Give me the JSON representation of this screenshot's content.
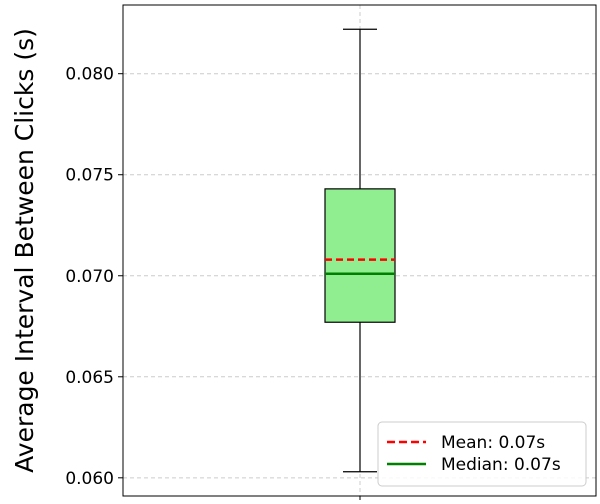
{
  "chart_data": {
    "type": "box",
    "ylabel": "Average Interval Between Clicks (s)",
    "ylim": [
      0.0591,
      0.0834
    ],
    "yticks": [
      0.06,
      0.065,
      0.07,
      0.075,
      0.08
    ],
    "ytick_labels": [
      "0.060",
      "0.065",
      "0.070",
      "0.075",
      "0.080"
    ],
    "grid": true,
    "legend_position": "bottom-right",
    "box": {
      "whisker_low": 0.0603,
      "q1": 0.0677,
      "median": 0.0701,
      "mean": 0.0708,
      "q3": 0.0743,
      "whisker_high": 0.0822
    },
    "legend": [
      {
        "label": "Mean: 0.07s",
        "style": "dashed",
        "color": "#ff0000"
      },
      {
        "label": "Median: 0.07s",
        "style": "solid",
        "color": "#008000"
      }
    ],
    "colors": {
      "box_fill": "#90ee90",
      "box_edge": "#000000",
      "mean_line": "#ff0000",
      "median_line": "#008000",
      "grid": "#cccccc"
    }
  }
}
